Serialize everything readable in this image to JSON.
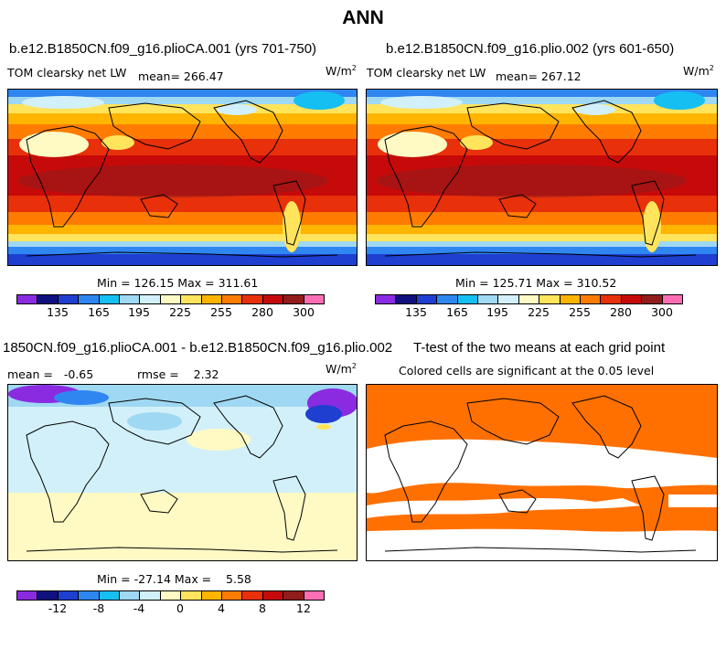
{
  "figure": {
    "title": "ANN"
  },
  "chart_data": [
    {
      "type": "heatmap",
      "title": "b.e12.B1850CN.f09_g16.plioCA.001 (yrs 701-750)",
      "variable": "TOM clearsky net LW",
      "stat": "mean= 266.47",
      "units": "W/m",
      "units_exp": "2",
      "minmax": "Min = 126.15 Max = 311.61",
      "min": 126.15,
      "max": 311.61,
      "mean": 266.47,
      "colorbar_labels": [
        "135",
        "165",
        "195",
        "225",
        "255",
        "280",
        "300"
      ]
    },
    {
      "type": "heatmap",
      "title": "b.e12.B1850CN.f09_g16.plio.002 (yrs 601-650)",
      "variable": "TOM clearsky net LW",
      "stat": "mean= 267.12",
      "units": "W/m",
      "units_exp": "2",
      "minmax": "Min = 125.71 Max = 310.52",
      "min": 125.71,
      "max": 310.52,
      "mean": 267.12,
      "colorbar_labels": [
        "135",
        "165",
        "195",
        "225",
        "255",
        "280",
        "300"
      ]
    },
    {
      "type": "heatmap",
      "title": "1850CN.f09_g16.plioCA.001 - b.e12.B1850CN.f09_g16.plio.002",
      "stat_mean": "mean =   -0.65",
      "stat_rmse": "rmse =    2.32",
      "mean": -0.65,
      "rmse": 2.32,
      "units": "W/m",
      "units_exp": "2",
      "minmax": "Min = -27.14 Max =    5.58",
      "min": -27.14,
      "max": 5.58,
      "colorbar_labels": [
        "-12",
        "-8",
        "-4",
        "0",
        "4",
        "8",
        "12"
      ]
    },
    {
      "type": "heatmap",
      "title": "T-test of the two means at each grid point",
      "subtitle": "Colored cells are significant at the 0.05 level",
      "significance_level": 0.05
    }
  ],
  "colors": {
    "colorbar": [
      "#8a2be2",
      "#10107e",
      "#1e3fd0",
      "#2f86f0",
      "#15bff2",
      "#9fd8f2",
      "#d2f0f9",
      "#fffac4",
      "#ffe45c",
      "#ffb400",
      "#ff7c00",
      "#e8300b",
      "#c60a0a",
      "#901c1c",
      "#ff6eb4"
    ],
    "significant": "#ff7000"
  }
}
